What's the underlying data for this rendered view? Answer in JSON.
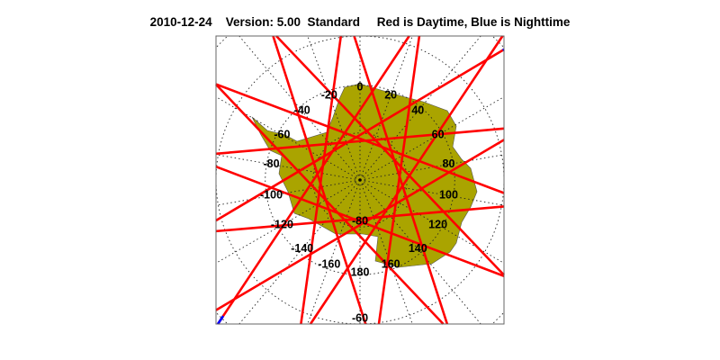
{
  "title": {
    "date": "2010-12-24",
    "version": "Version: 5.00",
    "mode": "Standard",
    "legend_text": "Red is Daytime, Blue is Nighttime"
  },
  "map": {
    "projection": "south polar stereographic",
    "land_color": "#aaa400",
    "day_color": "#ff0000",
    "night_color": "#0000ff",
    "longitude_labels": [
      {
        "lon": 0,
        "text": "0"
      },
      {
        "lon": 20,
        "text": "20"
      },
      {
        "lon": 40,
        "text": "40"
      },
      {
        "lon": 60,
        "text": "60"
      },
      {
        "lon": 80,
        "text": "80"
      },
      {
        "lon": 100,
        "text": "100"
      },
      {
        "lon": 120,
        "text": "120"
      },
      {
        "lon": 140,
        "text": "140"
      },
      {
        "lon": 160,
        "text": "160"
      },
      {
        "lon": 180,
        "text": "180"
      },
      {
        "lon": -160,
        "text": "-160"
      },
      {
        "lon": -140,
        "text": "-140"
      },
      {
        "lon": -120,
        "text": "-120"
      },
      {
        "lon": -100,
        "text": "-100"
      },
      {
        "lon": -80,
        "text": "-80"
      },
      {
        "lon": -60,
        "text": "-60"
      },
      {
        "lon": -40,
        "text": "-40"
      },
      {
        "lon": -20,
        "text": "-20"
      }
    ],
    "latitude_labels": [
      {
        "lat": -80,
        "text": "-80"
      },
      {
        "lat": -60,
        "text": "-60"
      }
    ]
  }
}
